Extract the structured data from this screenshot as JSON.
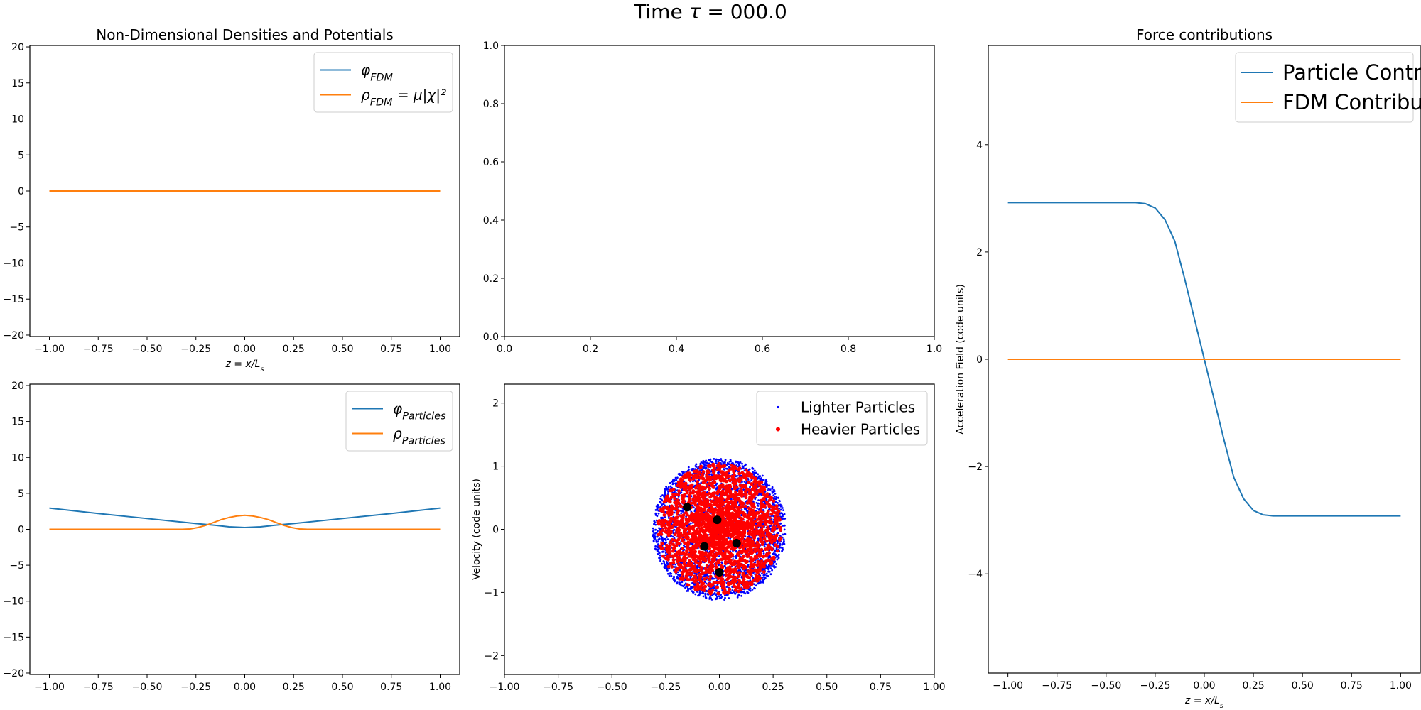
{
  "figure": {
    "suptitle": "Time τ = 000.0"
  },
  "colors": {
    "blue": "#1f77b4",
    "orange": "#ff7f0e",
    "light": "#0000ff",
    "heavy": "#ff0000",
    "dot": "#000000"
  },
  "chart_data": [
    {
      "id": "p1",
      "type": "line",
      "title": "Non-Dimensional Densities and Potentials",
      "xlabel": "z = x/L_s",
      "ylabel": "",
      "xlim": [
        -1.1,
        1.1
      ],
      "ylim": [
        -20.2,
        20.2
      ],
      "xticks": [
        -1.0,
        -0.75,
        -0.5,
        -0.25,
        0.0,
        0.25,
        0.5,
        0.75,
        1.0
      ],
      "xtick_labels": [
        "−1.00",
        "−0.75",
        "−0.50",
        "−0.25",
        "0.00",
        "0.25",
        "0.50",
        "0.75",
        "1.00"
      ],
      "yticks": [
        -20,
        -15,
        -10,
        -5,
        0,
        5,
        10,
        15,
        20
      ],
      "ytick_labels": [
        "−20",
        "−15",
        "−10",
        "−5",
        "0",
        "5",
        "10",
        "15",
        "20"
      ],
      "legend": "top-right",
      "series": [
        {
          "name": "φ_FDM",
          "color": "#1f77b4",
          "x": [
            -1.0,
            1.0
          ],
          "y": [
            0,
            0
          ]
        },
        {
          "name": "ρ_FDM = μ|χ|²",
          "color": "#ff7f0e",
          "x": [
            -1.0,
            1.0
          ],
          "y": [
            0,
            0
          ]
        }
      ]
    },
    {
      "id": "p2",
      "type": "line",
      "title": "",
      "xlabel": "",
      "ylabel": "",
      "xlim": [
        0,
        1
      ],
      "ylim": [
        0,
        1
      ],
      "xticks": [
        0,
        0.2,
        0.4,
        0.6,
        0.8,
        1.0
      ],
      "xtick_labels": [
        "0.0",
        "0.2",
        "0.4",
        "0.6",
        "0.8",
        "1.0"
      ],
      "yticks": [
        0,
        0.2,
        0.4,
        0.6,
        0.8,
        1.0
      ],
      "ytick_labels": [
        "0.0",
        "0.2",
        "0.4",
        "0.6",
        "0.8",
        "1.0"
      ],
      "series": []
    },
    {
      "id": "p3",
      "type": "line",
      "title": "Force contributions",
      "xlabel": "z = x/L_s",
      "ylabel": "Acceleration Field (code units)",
      "xlim": [
        -1.1,
        1.1
      ],
      "ylim": [
        -5.85,
        5.85
      ],
      "xticks": [
        -1.0,
        -0.75,
        -0.5,
        -0.25,
        0.0,
        0.25,
        0.5,
        0.75,
        1.0
      ],
      "xtick_labels": [
        "−1.00",
        "−0.75",
        "−0.50",
        "−0.25",
        "0.00",
        "0.25",
        "0.50",
        "0.75",
        "1.00"
      ],
      "yticks": [
        -4,
        -2,
        0,
        2,
        4
      ],
      "ytick_labels": [
        "−4",
        "−2",
        "0",
        "2",
        "4"
      ],
      "legend": "top-right",
      "series": [
        {
          "name": "Particle Contribution",
          "color": "#1f77b4",
          "x": [
            -1.0,
            -0.5,
            -0.35,
            -0.3,
            -0.25,
            -0.2,
            -0.15,
            -0.1,
            -0.05,
            0.0,
            0.05,
            0.1,
            0.15,
            0.2,
            0.25,
            0.3,
            0.35,
            0.5,
            1.0
          ],
          "y": [
            2.92,
            2.92,
            2.92,
            2.9,
            2.82,
            2.6,
            2.2,
            1.5,
            0.75,
            0.0,
            -0.75,
            -1.5,
            -2.2,
            -2.6,
            -2.82,
            -2.9,
            -2.92,
            -2.92,
            -2.92
          ]
        },
        {
          "name": "FDM Contribution",
          "color": "#ff7f0e",
          "x": [
            -1.0,
            1.0
          ],
          "y": [
            0,
            0
          ]
        }
      ]
    },
    {
      "id": "p4",
      "type": "line",
      "title": "",
      "xlabel": "",
      "ylabel": "",
      "xlim": [
        -1.1,
        1.1
      ],
      "ylim": [
        -20.2,
        20.2
      ],
      "xticks": [
        -1.0,
        -0.75,
        -0.5,
        -0.25,
        0.0,
        0.25,
        0.5,
        0.75,
        1.0
      ],
      "xtick_labels": [
        "−1.00",
        "−0.75",
        "−0.50",
        "−0.25",
        "0.00",
        "0.25",
        "0.50",
        "0.75",
        "1.00"
      ],
      "yticks": [
        -20,
        -15,
        -10,
        -5,
        0,
        5,
        10,
        15,
        20
      ],
      "ytick_labels": [
        "−20",
        "−15",
        "−10",
        "−5",
        "0",
        "5",
        "10",
        "15",
        "20"
      ],
      "legend": "top-right",
      "series": [
        {
          "name": "φ_Particles",
          "color": "#1f77b4",
          "x": [
            -1.0,
            -0.75,
            -0.5,
            -0.25,
            -0.15,
            -0.08,
            0.0,
            0.08,
            0.15,
            0.25,
            0.5,
            0.75,
            1.0
          ],
          "y": [
            2.95,
            2.2,
            1.5,
            0.8,
            0.55,
            0.35,
            0.25,
            0.35,
            0.55,
            0.8,
            1.5,
            2.2,
            2.95
          ]
        },
        {
          "name": "ρ_Particles",
          "color": "#ff7f0e",
          "x": [
            -1.0,
            -0.32,
            -0.28,
            -0.24,
            -0.2,
            -0.16,
            -0.12,
            -0.08,
            -0.04,
            0.0,
            0.04,
            0.08,
            0.12,
            0.16,
            0.2,
            0.24,
            0.28,
            0.32,
            1.0
          ],
          "y": [
            0,
            0,
            0.05,
            0.25,
            0.55,
            0.95,
            1.35,
            1.65,
            1.85,
            1.95,
            1.85,
            1.65,
            1.35,
            0.95,
            0.55,
            0.25,
            0.05,
            0,
            0
          ]
        }
      ]
    },
    {
      "id": "p5",
      "type": "scatter",
      "title": "",
      "xlabel": "",
      "ylabel": "Velocity (code units)",
      "xlim": [
        -1.0,
        1.0
      ],
      "ylim": [
        -2.3,
        2.3
      ],
      "xticks": [
        -1.0,
        -0.75,
        -0.5,
        -0.25,
        0.0,
        0.25,
        0.5,
        0.75,
        1.0
      ],
      "xtick_labels": [
        "−1.00",
        "−0.75",
        "−0.50",
        "−0.25",
        "0.00",
        "0.25",
        "0.50",
        "0.75",
        "1.00"
      ],
      "yticks": [
        -2,
        -1,
        0,
        1,
        2
      ],
      "ytick_labels": [
        "−2",
        "−1",
        "0",
        "1",
        "2"
      ],
      "legend": "top-right",
      "cloud": {
        "center": [
          0.0,
          0.0
        ],
        "radius_x": 0.31,
        "radius_y": 1.12
      },
      "series": [
        {
          "name": "Lighter Particles",
          "color": "#0000ff"
        },
        {
          "name": "Heavier Particles",
          "color": "#ff0000"
        }
      ],
      "large_points": [
        {
          "x": -0.15,
          "y": 0.35
        },
        {
          "x": -0.01,
          "y": 0.15
        },
        {
          "x": -0.07,
          "y": -0.27
        },
        {
          "x": 0.08,
          "y": -0.22
        },
        {
          "x": 0.0,
          "y": -0.68
        }
      ]
    }
  ]
}
